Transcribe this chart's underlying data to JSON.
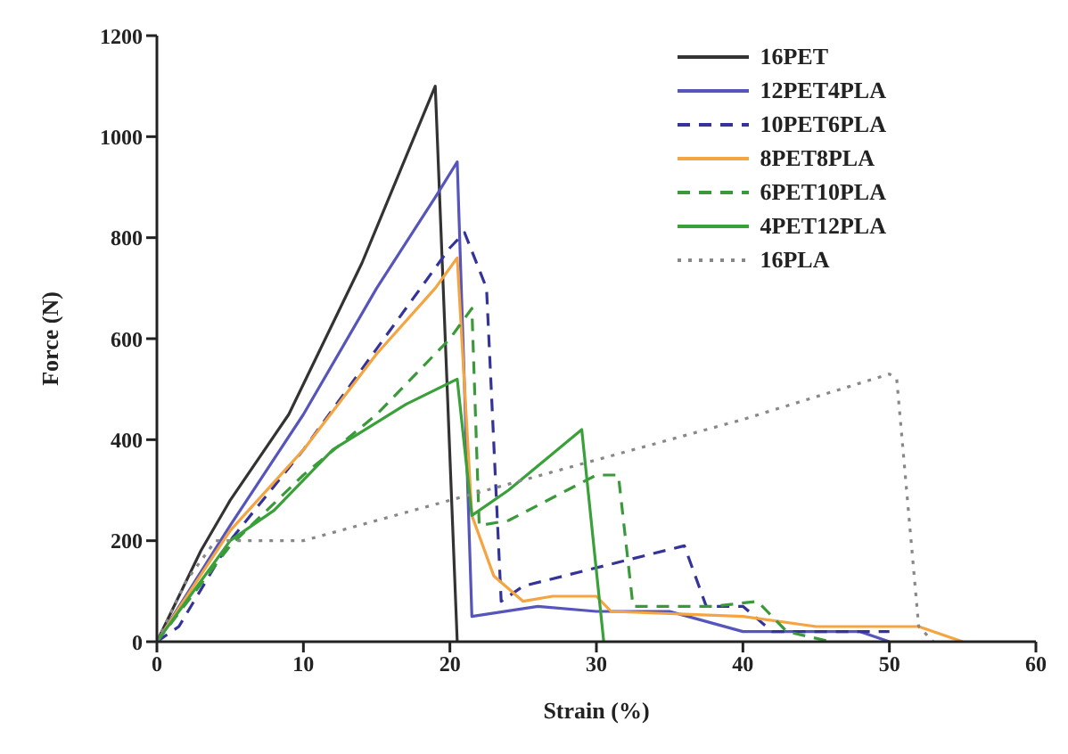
{
  "chart_data": {
    "type": "line",
    "xlabel": "Strain (%)",
    "ylabel": "Force (N)",
    "xlim": [
      0,
      60
    ],
    "xticks": [
      0,
      10,
      20,
      30,
      40,
      50,
      60
    ],
    "ylim": [
      0,
      1200
    ],
    "yticks": [
      0,
      200,
      400,
      600,
      800,
      1000,
      1200
    ],
    "grid": false,
    "legend": "top right",
    "marker": "none",
    "series": [
      {
        "name": "16PET",
        "color": "#333333",
        "line_style": "solid",
        "x": [
          0,
          3,
          5,
          9,
          14,
          19,
          20.5
        ],
        "values": [
          0,
          180,
          280,
          450,
          750,
          1100,
          0
        ]
      },
      {
        "name": "12PET4PLA",
        "color": "#5555bb",
        "line_style": "solid",
        "x": [
          0,
          5,
          10,
          15,
          19,
          20.5,
          21.5,
          26,
          30,
          35,
          40,
          48,
          50
        ],
        "values": [
          0,
          230,
          450,
          700,
          880,
          950,
          50,
          70,
          60,
          60,
          20,
          20,
          0
        ]
      },
      {
        "name": "10PET6PLA",
        "color": "#333399",
        "line_style": "dashed",
        "x": [
          0,
          1.5,
          5,
          10,
          15,
          20,
          21,
          22.5,
          23.5,
          25,
          36,
          37.5,
          40,
          42,
          50
        ],
        "values": [
          0,
          30,
          200,
          380,
          580,
          780,
          810,
          700,
          80,
          110,
          190,
          70,
          70,
          20,
          20
        ]
      },
      {
        "name": "8PET8PLA",
        "color": "#f5a442",
        "line_style": "solid",
        "x": [
          0,
          5,
          10,
          15,
          19,
          20.5,
          21.5,
          23,
          25,
          27,
          30,
          31,
          40,
          45,
          52,
          55
        ],
        "values": [
          0,
          220,
          380,
          570,
          700,
          760,
          250,
          130,
          80,
          90,
          90,
          60,
          50,
          30,
          30,
          0
        ]
      },
      {
        "name": "6PET10PLA",
        "color": "#3a9a3a",
        "line_style": "dashed",
        "x": [
          0,
          5,
          10,
          15,
          20,
          21.5,
          22,
          24,
          28,
          30,
          31.5,
          32.5,
          35,
          38,
          41,
          43,
          46
        ],
        "values": [
          0,
          190,
          330,
          450,
          600,
          660,
          230,
          240,
          300,
          330,
          330,
          70,
          70,
          70,
          80,
          20,
          0
        ]
      },
      {
        "name": "4PET12PLA",
        "color": "#3aa03a",
        "line_style": "solid",
        "x": [
          0,
          5,
          8,
          12,
          17,
          20.5,
          21.5,
          24,
          29,
          30.5
        ],
        "values": [
          0,
          200,
          260,
          380,
          470,
          520,
          250,
          300,
          420,
          0
        ]
      },
      {
        "name": "16PLA",
        "color": "#888888",
        "line_style": "dotted",
        "x": [
          0,
          2,
          4,
          10,
          15,
          20,
          25,
          30,
          40,
          50,
          50.5,
          52,
          53
        ],
        "values": [
          0,
          120,
          200,
          200,
          240,
          280,
          320,
          360,
          440,
          530,
          520,
          30,
          0
        ]
      }
    ]
  }
}
